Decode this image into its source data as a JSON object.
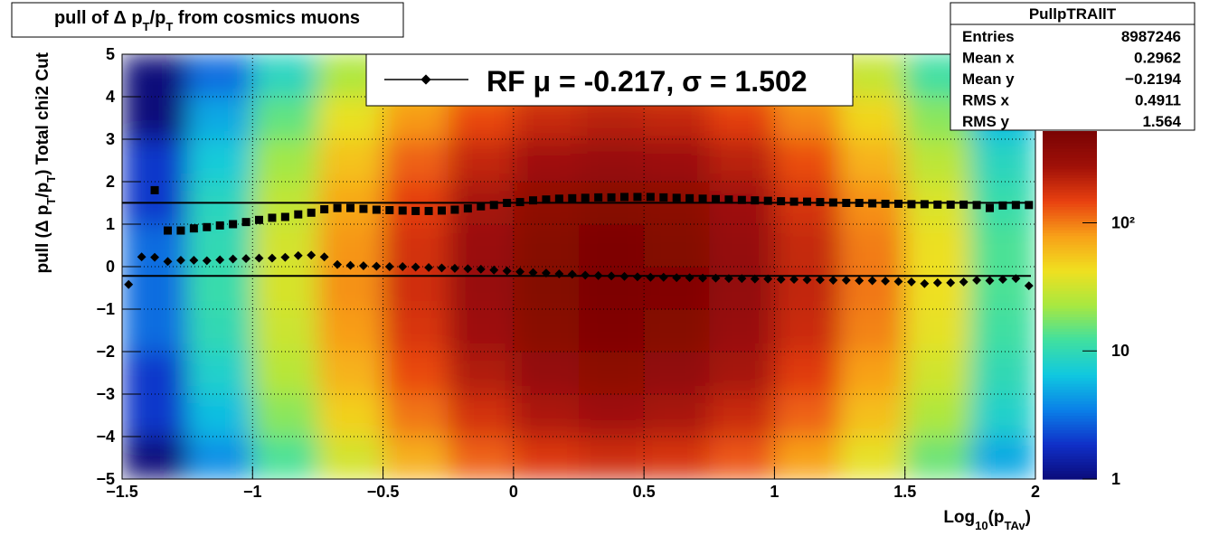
{
  "chart_data": {
    "type": "heatmap",
    "title": [
      "pull of Δ p",
      "T",
      "/p",
      "T",
      " from cosmics muons"
    ],
    "x_label": [
      "Log",
      "10",
      "(p",
      "TAv",
      ")"
    ],
    "y_label": [
      "pull (Δ p",
      "T",
      "/p",
      "T",
      ")  Total chi2 Cut"
    ],
    "xlim": [
      -1.5,
      2
    ],
    "ylim": [
      -5,
      5
    ],
    "zlim": [
      1,
      520
    ],
    "z_log": true,
    "grid": true,
    "xticks": [
      {
        "value": -1.5,
        "label": "−1.5"
      },
      {
        "value": -1,
        "label": "−1"
      },
      {
        "value": -0.5,
        "label": "−0.5"
      },
      0,
      0.5,
      1,
      1.5,
      2
    ],
    "yticks": [
      {
        "value": -5,
        "label": "−5"
      },
      {
        "value": -4,
        "label": "−4"
      },
      {
        "value": -3,
        "label": "−3"
      },
      {
        "value": -2,
        "label": "−2"
      },
      {
        "value": -1,
        "label": "−1"
      },
      0,
      1,
      2,
      3,
      4,
      5
    ],
    "zticks": [
      1,
      10,
      {
        "value": 100,
        "label": "10²"
      }
    ],
    "palette": [
      "#0b0b7a",
      "#1030c8",
      "#0a80e8",
      "#10c8e0",
      "#40e0a0",
      "#a8e840",
      "#f0e020",
      "#f8a018",
      "#e84010",
      "#a01008",
      "#7a0404"
    ],
    "x_bins": [
      -1.5,
      -1.25,
      -1,
      -0.75,
      -0.5,
      -0.25,
      0,
      0.25,
      0.5,
      0.75,
      1,
      1.25,
      1.5,
      1.75,
      2
    ],
    "y_bins": [
      -5,
      -4,
      -3,
      -2,
      -1,
      0,
      1,
      2,
      3,
      4,
      5
    ],
    "z": [
      [
        1,
        4,
        13,
        33,
        69,
        119,
        165,
        188,
        173,
        129,
        79,
        39,
        16,
        5
      ],
      [
        2,
        6,
        19,
        50,
        105,
        179,
        250,
        283,
        260,
        195,
        119,
        59,
        24,
        8
      ],
      [
        2,
        8,
        26,
        67,
        141,
        242,
        337,
        382,
        351,
        264,
        160,
        79,
        32,
        10
      ],
      [
        3,
        10,
        31,
        81,
        171,
        293,
        407,
        462,
        425,
        318,
        193,
        96,
        39,
        12
      ],
      [
        3,
        11,
        34,
        88,
        185,
        316,
        440,
        499,
        459,
        344,
        209,
        104,
        42,
        13
      ],
      [
        3,
        10,
        33,
        85,
        179,
        306,
        426,
        483,
        444,
        333,
        202,
        100,
        41,
        13
      ],
      [
        2,
        9,
        28,
        73,
        154,
        265,
        368,
        418,
        384,
        288,
        175,
        87,
        35,
        11
      ],
      [
        2,
        7,
        22,
        57,
        120,
        205,
        285,
        324,
        298,
        223,
        136,
        67,
        27,
        9
      ],
      [
        1,
        5,
        15,
        40,
        83,
        142,
        198,
        225,
        207,
        155,
        94,
        47,
        19,
        6
      ],
      [
        1,
        3,
        9,
        24,
        51,
        88,
        123,
        139,
        128,
        96,
        58,
        29,
        12,
        4
      ]
    ],
    "profiles": [
      {
        "marker": "square",
        "color": "#000000",
        "x": [
          -1.375,
          -1.325,
          -1.275,
          -1.225,
          -1.175,
          -1.125,
          -1.075,
          -1.025,
          -0.975,
          -0.925,
          -0.875,
          -0.825,
          -0.775,
          -0.725,
          -0.675,
          -0.625,
          -0.575,
          -0.525,
          -0.475,
          -0.425,
          -0.375,
          -0.325,
          -0.275,
          -0.225,
          -0.175,
          -0.125,
          -0.075,
          -0.025,
          0.025,
          0.075,
          0.125,
          0.175,
          0.225,
          0.275,
          0.325,
          0.375,
          0.425,
          0.475,
          0.525,
          0.575,
          0.625,
          0.675,
          0.725,
          0.775,
          0.825,
          0.875,
          0.925,
          0.975,
          1.025,
          1.075,
          1.125,
          1.175,
          1.225,
          1.275,
          1.325,
          1.375,
          1.425,
          1.475,
          1.525,
          1.575,
          1.625,
          1.675,
          1.725,
          1.775,
          1.825,
          1.875,
          1.925,
          1.975
        ],
        "values": [
          1.8,
          0.85,
          0.85,
          0.9,
          0.93,
          0.97,
          1.0,
          1.05,
          1.1,
          1.15,
          1.17,
          1.23,
          1.27,
          1.35,
          1.38,
          1.38,
          1.36,
          1.34,
          1.33,
          1.32,
          1.31,
          1.31,
          1.32,
          1.34,
          1.37,
          1.42,
          1.45,
          1.5,
          1.52,
          1.56,
          1.58,
          1.6,
          1.61,
          1.62,
          1.63,
          1.63,
          1.64,
          1.64,
          1.64,
          1.63,
          1.62,
          1.61,
          1.6,
          1.59,
          1.58,
          1.57,
          1.56,
          1.55,
          1.54,
          1.53,
          1.53,
          1.52,
          1.51,
          1.5,
          1.5,
          1.49,
          1.48,
          1.48,
          1.47,
          1.47,
          1.46,
          1.46,
          1.46,
          1.45,
          1.38,
          1.44,
          1.45,
          1.45
        ]
      },
      {
        "marker": "diamond",
        "color": "#000000",
        "x": [
          -1.475,
          -1.425,
          -1.375,
          -1.325,
          -1.275,
          -1.225,
          -1.175,
          -1.125,
          -1.075,
          -1.025,
          -0.975,
          -0.925,
          -0.875,
          -0.825,
          -0.775,
          -0.725,
          -0.675,
          -0.625,
          -0.575,
          -0.525,
          -0.475,
          -0.425,
          -0.375,
          -0.325,
          -0.275,
          -0.225,
          -0.175,
          -0.125,
          -0.075,
          -0.025,
          0.025,
          0.075,
          0.125,
          0.175,
          0.225,
          0.275,
          0.325,
          0.375,
          0.425,
          0.475,
          0.525,
          0.575,
          0.625,
          0.675,
          0.725,
          0.775,
          0.825,
          0.875,
          0.925,
          0.975,
          1.025,
          1.075,
          1.125,
          1.175,
          1.225,
          1.275,
          1.325,
          1.375,
          1.425,
          1.475,
          1.525,
          1.575,
          1.625,
          1.675,
          1.725,
          1.775,
          1.825,
          1.875,
          1.925,
          1.975
        ],
        "values": [
          -0.42,
          0.23,
          0.22,
          0.12,
          0.15,
          0.15,
          0.14,
          0.16,
          0.18,
          0.19,
          0.2,
          0.2,
          0.22,
          0.26,
          0.27,
          0.23,
          0.05,
          0.03,
          0.02,
          0.01,
          0.0,
          0.0,
          -0.01,
          -0.02,
          -0.03,
          -0.04,
          -0.05,
          -0.06,
          -0.08,
          -0.1,
          -0.12,
          -0.14,
          -0.15,
          -0.17,
          -0.18,
          -0.2,
          -0.21,
          -0.22,
          -0.23,
          -0.24,
          -0.25,
          -0.25,
          -0.26,
          -0.26,
          -0.27,
          -0.27,
          -0.28,
          -0.28,
          -0.29,
          -0.29,
          -0.3,
          -0.3,
          -0.31,
          -0.31,
          -0.32,
          -0.32,
          -0.33,
          -0.33,
          -0.34,
          -0.35,
          -0.36,
          -0.4,
          -0.38,
          -0.38,
          -0.36,
          -0.32,
          -0.33,
          -0.3,
          -0.28,
          -0.45
        ]
      }
    ],
    "fit_lines": [
      {
        "value": -0.217
      },
      {
        "value": 1.502
      }
    ],
    "legend": {
      "label": "RF μ = -0.217, σ =   1.502",
      "corner": "top"
    },
    "stats": {
      "title": "PullpTRAllT",
      "rows": [
        [
          "Entries",
          "8987246"
        ],
        [
          "Mean x",
          "0.2962"
        ],
        [
          "Mean y",
          "−0.2194"
        ],
        [
          "RMS x",
          "0.4911"
        ],
        [
          "RMS y",
          "1.564"
        ]
      ]
    }
  }
}
